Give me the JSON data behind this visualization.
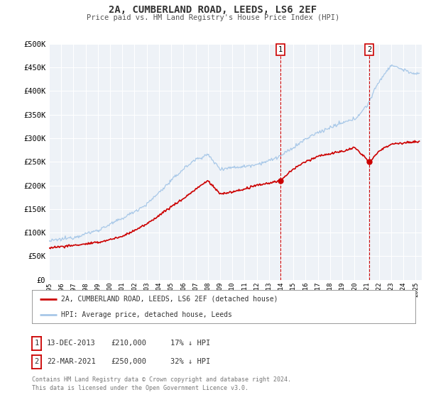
{
  "title_line1": "2A, CUMBERLAND ROAD, LEEDS, LS6 2EF",
  "title_line2": "Price paid vs. HM Land Registry's House Price Index (HPI)",
  "ylim": [
    0,
    500000
  ],
  "yticks": [
    0,
    50000,
    100000,
    150000,
    200000,
    250000,
    300000,
    350000,
    400000,
    450000,
    500000
  ],
  "ytick_labels": [
    "£0",
    "£50K",
    "£100K",
    "£150K",
    "£200K",
    "£250K",
    "£300K",
    "£350K",
    "£400K",
    "£450K",
    "£500K"
  ],
  "hpi_color": "#a8c8e8",
  "sale_color": "#cc0000",
  "vline_color": "#cc0000",
  "marker_color": "#cc0000",
  "annotation1_date": 2013.95,
  "annotation1_sale": 210000,
  "annotation2_date": 2021.22,
  "annotation2_sale": 250000,
  "legend_sale_label": "2A, CUMBERLAND ROAD, LEEDS, LS6 2EF (detached house)",
  "legend_hpi_label": "HPI: Average price, detached house, Leeds",
  "note1_label": "1",
  "note1_date": "13-DEC-2013",
  "note1_price": "£210,000",
  "note1_hpi": "17% ↓ HPI",
  "note2_label": "2",
  "note2_date": "22-MAR-2021",
  "note2_price": "£250,000",
  "note2_hpi": "32% ↓ HPI",
  "footer": "Contains HM Land Registry data © Crown copyright and database right 2024.\nThis data is licensed under the Open Government Licence v3.0.",
  "background_color": "#ffffff",
  "plot_bg_color": "#eef2f7",
  "grid_color": "#ffffff",
  "xstart": 1995.0,
  "xend": 2025.5,
  "xticks": [
    1995,
    1996,
    1997,
    1998,
    1999,
    2000,
    2001,
    2002,
    2003,
    2004,
    2005,
    2006,
    2007,
    2008,
    2009,
    2010,
    2011,
    2012,
    2013,
    2014,
    2015,
    2016,
    2017,
    2018,
    2019,
    2020,
    2021,
    2022,
    2023,
    2024,
    2025
  ]
}
